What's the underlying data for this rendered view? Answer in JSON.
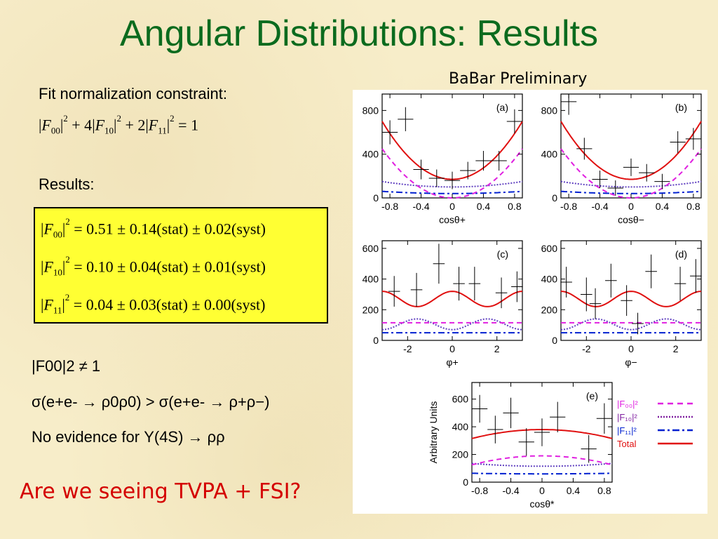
{
  "slide": {
    "title": "Angular Distributions: Results",
    "babar": "BaBar Preliminary",
    "fit_label": "Fit normalization constraint:",
    "constraint": {
      "c1": "+ 4",
      "c2": "+ 2",
      "rhs": "= 1"
    },
    "results_label": "Results:",
    "results": [
      {
        "idx": "00",
        "text": "= 0.51 ± 0.14(stat) ± 0.02(syst)"
      },
      {
        "idx": "10",
        "text": "= 0.10 ± 0.04(stat) ± 0.01(syst)"
      },
      {
        "idx": "11",
        "text": "= 0.04 ± 0.03(stat) ± 0.00(syst)"
      }
    ],
    "line1": "|F00|2 ≠ 1",
    "line2": "σ(e+e- → ρ0ρ0) > σ(e+e- → ρ+ρ−)",
    "line3": "No evidence for Υ(4S) → ρρ",
    "question": "Are we seeing TVPA + FSI?"
  },
  "legend": [
    {
      "label": "|F₀₀|²",
      "color": "#e020e0",
      "dash": "8,6"
    },
    {
      "label": "|F₁₀|²",
      "color": "#8020a0",
      "dash": "2,2"
    },
    {
      "label": "|F₁₁|²",
      "color": "#0020d0",
      "dash": "10,4,3,4"
    },
    {
      "label": "Total",
      "color": "#e01010",
      "dash": ""
    }
  ],
  "chart_data": [
    {
      "type": "line",
      "tag": "(a)",
      "xlabel": "cosθ+",
      "xlim": [
        -0.9,
        0.9
      ],
      "ylim": [
        0,
        950
      ],
      "xticks": [
        -0.8,
        -0.4,
        0,
        0.4,
        0.8
      ],
      "yticks": [
        0,
        400,
        800
      ],
      "data": [
        {
          "x": -0.8,
          "y": 600,
          "ex": 0.1,
          "ey": 110
        },
        {
          "x": -0.6,
          "y": 720,
          "ex": 0.1,
          "ey": 110
        },
        {
          "x": -0.4,
          "y": 260,
          "ex": 0.1,
          "ey": 90
        },
        {
          "x": -0.2,
          "y": 180,
          "ex": 0.1,
          "ey": 80
        },
        {
          "x": 0.0,
          "y": 160,
          "ex": 0.1,
          "ey": 80
        },
        {
          "x": 0.2,
          "y": 250,
          "ex": 0.1,
          "ey": 80
        },
        {
          "x": 0.4,
          "y": 340,
          "ex": 0.1,
          "ey": 90
        },
        {
          "x": 0.6,
          "y": 340,
          "ex": 0.1,
          "ey": 90
        },
        {
          "x": 0.8,
          "y": 700,
          "ex": 0.1,
          "ey": 110
        }
      ],
      "curves": {
        "total": [
          170,
          700
        ],
        "f00": [
          0,
          450
        ],
        "f10": [
          100,
          150
        ],
        "f11": [
          40,
          60
        ]
      }
    },
    {
      "type": "line",
      "tag": "(b)",
      "xlabel": "cosθ−",
      "xlim": [
        -0.9,
        0.9
      ],
      "ylim": [
        0,
        950
      ],
      "xticks": [
        -0.8,
        -0.4,
        0,
        0.4,
        0.8
      ],
      "yticks": [
        0,
        400,
        800
      ],
      "data": [
        {
          "x": -0.8,
          "y": 880,
          "ex": 0.1,
          "ey": 120
        },
        {
          "x": -0.6,
          "y": 450,
          "ex": 0.1,
          "ey": 100
        },
        {
          "x": -0.4,
          "y": 170,
          "ex": 0.1,
          "ey": 80
        },
        {
          "x": -0.2,
          "y": 90,
          "ex": 0.1,
          "ey": 70
        },
        {
          "x": 0.0,
          "y": 280,
          "ex": 0.1,
          "ey": 80
        },
        {
          "x": 0.2,
          "y": 230,
          "ex": 0.1,
          "ey": 80
        },
        {
          "x": 0.4,
          "y": 150,
          "ex": 0.1,
          "ey": 70
        },
        {
          "x": 0.6,
          "y": 510,
          "ex": 0.1,
          "ey": 100
        },
        {
          "x": 0.8,
          "y": 540,
          "ex": 0.1,
          "ey": 100
        }
      ],
      "curves": {
        "total": [
          170,
          700
        ],
        "f00": [
          0,
          450
        ],
        "f10": [
          100,
          150
        ],
        "f11": [
          40,
          60
        ]
      }
    },
    {
      "type": "line",
      "tag": "(c)",
      "xlabel": "φ+",
      "xlim": [
        -3.14,
        3.14
      ],
      "ylim": [
        0,
        650
      ],
      "xticks": [
        -2,
        0,
        2
      ],
      "yticks": [
        0,
        200,
        400,
        600
      ],
      "data": [
        {
          "x": -2.6,
          "y": 320,
          "ex": 0.26,
          "ey": 100
        },
        {
          "x": -1.6,
          "y": 330,
          "ex": 0.26,
          "ey": 110
        },
        {
          "x": -0.6,
          "y": 500,
          "ex": 0.26,
          "ey": 130
        },
        {
          "x": 0.3,
          "y": 370,
          "ex": 0.26,
          "ey": 110
        },
        {
          "x": 1.0,
          "y": 370,
          "ex": 0.26,
          "ey": 110
        },
        {
          "x": 2.2,
          "y": 310,
          "ex": 0.26,
          "ey": 100
        },
        {
          "x": 2.9,
          "y": 350,
          "ex": 0.26,
          "ey": 100
        }
      ],
      "curves": {
        "mode": "phi",
        "total": [
          270,
          50
        ],
        "f00": [
          115,
          0
        ],
        "f10": [
          105,
          -35
        ],
        "f11": [
          50,
          0
        ]
      }
    },
    {
      "type": "line",
      "tag": "(d)",
      "xlabel": "φ−",
      "xlim": [
        -3.14,
        3.14
      ],
      "ylim": [
        0,
        650
      ],
      "xticks": [
        -2,
        0,
        2
      ],
      "yticks": [
        0,
        200,
        400,
        600
      ],
      "data": [
        {
          "x": -2.9,
          "y": 380,
          "ex": 0.26,
          "ey": 100
        },
        {
          "x": -2.0,
          "y": 300,
          "ex": 0.26,
          "ey": 110
        },
        {
          "x": -1.6,
          "y": 240,
          "ex": 0.26,
          "ey": 100
        },
        {
          "x": -0.9,
          "y": 390,
          "ex": 0.26,
          "ey": 110
        },
        {
          "x": -0.2,
          "y": 260,
          "ex": 0.26,
          "ey": 100
        },
        {
          "x": 0.3,
          "y": 110,
          "ex": 0.26,
          "ey": 70
        },
        {
          "x": 0.9,
          "y": 450,
          "ex": 0.26,
          "ey": 110
        },
        {
          "x": 2.2,
          "y": 370,
          "ex": 0.26,
          "ey": 110
        },
        {
          "x": 2.9,
          "y": 420,
          "ex": 0.26,
          "ey": 110
        }
      ],
      "curves": {
        "mode": "phi",
        "total": [
          270,
          50
        ],
        "f00": [
          115,
          0
        ],
        "f10": [
          105,
          -35
        ],
        "f11": [
          50,
          0
        ]
      }
    },
    {
      "type": "line",
      "tag": "(e)",
      "xlabel": "cosθ*",
      "ylabel": "Arbitrary Units",
      "xlim": [
        -0.9,
        0.9
      ],
      "ylim": [
        0,
        720
      ],
      "xticks": [
        -0.8,
        -0.4,
        0,
        0.4,
        0.8
      ],
      "yticks": [
        0,
        200,
        400,
        600
      ],
      "data": [
        {
          "x": -0.8,
          "y": 530,
          "ex": 0.1,
          "ey": 100
        },
        {
          "x": -0.6,
          "y": 380,
          "ex": 0.1,
          "ey": 100
        },
        {
          "x": -0.4,
          "y": 500,
          "ex": 0.1,
          "ey": 110
        },
        {
          "x": -0.2,
          "y": 290,
          "ex": 0.1,
          "ey": 100
        },
        {
          "x": 0.0,
          "y": 360,
          "ex": 0.1,
          "ey": 100
        },
        {
          "x": 0.2,
          "y": 470,
          "ex": 0.1,
          "ey": 110
        },
        {
          "x": 0.6,
          "y": 240,
          "ex": 0.1,
          "ey": 100
        },
        {
          "x": 0.8,
          "y": 460,
          "ex": 0.1,
          "ey": 110
        }
      ],
      "curves": {
        "mode": "star",
        "total": [
          380,
          -80
        ],
        "f00": [
          190,
          -80
        ],
        "f10": [
          115,
          25
        ],
        "f11": [
          60,
          5
        ]
      }
    }
  ]
}
